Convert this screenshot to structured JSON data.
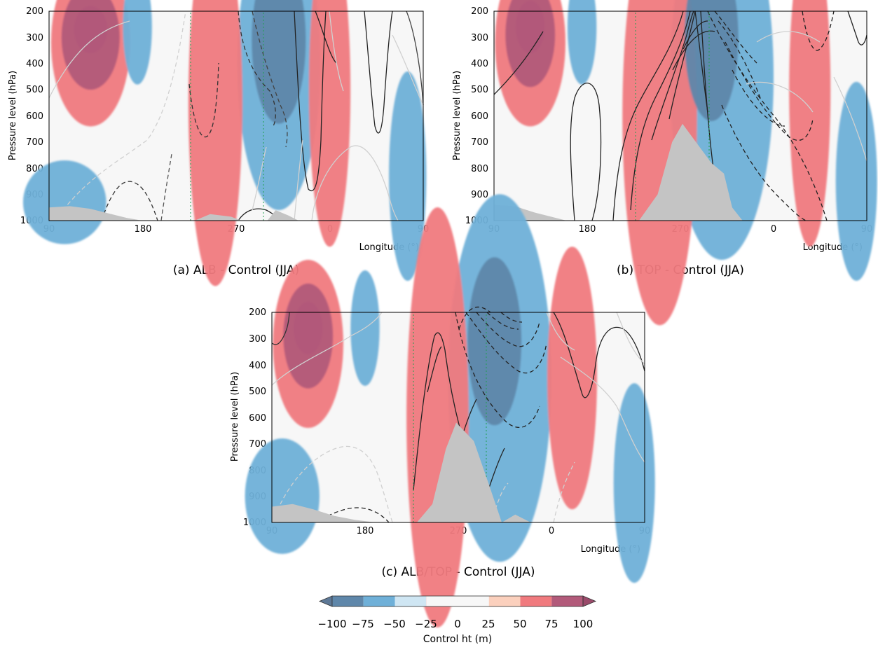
{
  "colorbar": {
    "label": "Control ht (m)",
    "ticks": [
      "−100",
      "−75",
      "−50",
      "−25",
      "0",
      "25",
      "50",
      "75",
      "100"
    ],
    "colors": [
      "#5f87aa",
      "#6fb0d8",
      "#cfe6f3",
      "#f7f7f7",
      "#f7f7f7",
      "#fbd0bd",
      "#f07a7e",
      "#b25a7a"
    ]
  },
  "chart_data": [
    {
      "type": "heatmap",
      "caption": "(a) ALB - Control (JJA)",
      "xlabel": "Longitude (°)",
      "ylabel": "Pressure level (hPa)",
      "x_ticks": [
        "90",
        "180",
        "270",
        "0",
        "90"
      ],
      "y_ticks": [
        "200",
        "300",
        "400",
        "500",
        "600",
        "700",
        "800",
        "900",
        "1000"
      ],
      "ylim": [
        1000,
        200
      ],
      "blobs": [
        {
          "lon": 130,
          "p": 270,
          "value": 100,
          "w": 16,
          "h": 90
        },
        {
          "lon": 130,
          "p": 300,
          "value": 75,
          "w": 28,
          "h": 200
        },
        {
          "lon": 130,
          "p": 320,
          "value": 50,
          "w": 38,
          "h": 320
        },
        {
          "lon": 311,
          "p": 310,
          "value": -75,
          "w": 26,
          "h": 320
        },
        {
          "lon": 311,
          "p": 400,
          "value": -50,
          "w": 40,
          "h": 560
        },
        {
          "lon": 250,
          "p": 550,
          "value": 50,
          "w": 26,
          "h": 700
        },
        {
          "lon": 0,
          "p": 500,
          "value": 50,
          "w": 20,
          "h": 600
        },
        {
          "lon": 175,
          "p": 260,
          "value": -50,
          "w": 14,
          "h": 220
        },
        {
          "lon": 105,
          "p": 930,
          "value": -50,
          "w": 40,
          "h": 160
        },
        {
          "lon": 75,
          "p": 830,
          "value": -50,
          "w": 18,
          "h": 400
        }
      ],
      "terrain": [
        [
          90,
          950
        ],
        [
          110,
          945
        ],
        [
          130,
          955
        ],
        [
          150,
          975
        ],
        [
          165,
          990
        ],
        [
          180,
          1000
        ],
        [
          230,
          1000
        ],
        [
          245,
          975
        ],
        [
          265,
          985
        ],
        [
          275,
          1000
        ],
        [
          300,
          1000
        ],
        [
          308,
          960
        ],
        [
          320,
          980
        ],
        [
          330,
          1000
        ],
        [
          90,
          1000
        ]
      ]
    },
    {
      "type": "heatmap",
      "caption": "(b) TOP - Control (JJA)",
      "xlabel": "Longitude (°)",
      "ylabel": "Pressure level (hPa)",
      "x_ticks": [
        "90",
        "180",
        "270",
        "0",
        "90"
      ],
      "y_ticks": [
        "200",
        "300",
        "400",
        "500",
        "600",
        "700",
        "800",
        "900",
        "1000"
      ],
      "ylim": [
        1000,
        200
      ],
      "blobs": [
        {
          "lon": 125,
          "p": 260,
          "value": 100,
          "w": 14,
          "h": 100
        },
        {
          "lon": 125,
          "p": 290,
          "value": 75,
          "w": 24,
          "h": 200
        },
        {
          "lon": 125,
          "p": 320,
          "value": 50,
          "w": 34,
          "h": 320
        },
        {
          "lon": 300,
          "p": 300,
          "value": -75,
          "w": 26,
          "h": 320
        },
        {
          "lon": 310,
          "p": 450,
          "value": -50,
          "w": 50,
          "h": 700
        },
        {
          "lon": 250,
          "p": 600,
          "value": 50,
          "w": 36,
          "h": 800
        },
        {
          "lon": 35,
          "p": 500,
          "value": 50,
          "w": 20,
          "h": 600
        },
        {
          "lon": 175,
          "p": 260,
          "value": -50,
          "w": 14,
          "h": 220
        },
        {
          "lon": 80,
          "p": 850,
          "value": -50,
          "w": 20,
          "h": 380
        }
      ],
      "terrain": [
        [
          90,
          940
        ],
        [
          110,
          945
        ],
        [
          130,
          970
        ],
        [
          150,
          990
        ],
        [
          160,
          1000
        ],
        [
          230,
          1000
        ],
        [
          248,
          900
        ],
        [
          262,
          700
        ],
        [
          272,
          630
        ],
        [
          285,
          700
        ],
        [
          300,
          780
        ],
        [
          312,
          820
        ],
        [
          320,
          950
        ],
        [
          330,
          1000
        ],
        [
          90,
          1000
        ]
      ]
    },
    {
      "type": "heatmap",
      "caption": "(c) ALB/TOP - Control (JJA)",
      "xlabel": "Longitude (°)",
      "ylabel": "Pressure level (hPa)",
      "x_ticks": [
        "90",
        "180",
        "270",
        "0",
        "90"
      ],
      "y_ticks": [
        "200",
        "300",
        "400",
        "500",
        "600",
        "700",
        "800",
        "900",
        "1000"
      ],
      "ylim": [
        1000,
        200
      ],
      "blobs": [
        {
          "lon": 125,
          "p": 260,
          "value": 100,
          "w": 14,
          "h": 100
        },
        {
          "lon": 125,
          "p": 290,
          "value": 75,
          "w": 24,
          "h": 200
        },
        {
          "lon": 125,
          "p": 320,
          "value": 50,
          "w": 34,
          "h": 320
        },
        {
          "lon": 305,
          "p": 310,
          "value": -75,
          "w": 26,
          "h": 320
        },
        {
          "lon": 310,
          "p": 450,
          "value": -50,
          "w": 50,
          "h": 700
        },
        {
          "lon": 250,
          "p": 600,
          "value": 50,
          "w": 30,
          "h": 800
        },
        {
          "lon": 20,
          "p": 450,
          "value": 50,
          "w": 24,
          "h": 500
        },
        {
          "lon": 180,
          "p": 260,
          "value": -50,
          "w": 14,
          "h": 220
        },
        {
          "lon": 100,
          "p": 900,
          "value": -50,
          "w": 36,
          "h": 220
        },
        {
          "lon": 80,
          "p": 850,
          "value": -50,
          "w": 20,
          "h": 380
        }
      ],
      "terrain": [
        [
          90,
          940
        ],
        [
          110,
          930
        ],
        [
          130,
          950
        ],
        [
          150,
          975
        ],
        [
          170,
          990
        ],
        [
          190,
          1000
        ],
        [
          230,
          1000
        ],
        [
          245,
          930
        ],
        [
          258,
          720
        ],
        [
          268,
          620
        ],
        [
          285,
          690
        ],
        [
          300,
          860
        ],
        [
          312,
          1000
        ],
        [
          325,
          970
        ],
        [
          340,
          1000
        ],
        [
          90,
          1000
        ]
      ]
    }
  ]
}
